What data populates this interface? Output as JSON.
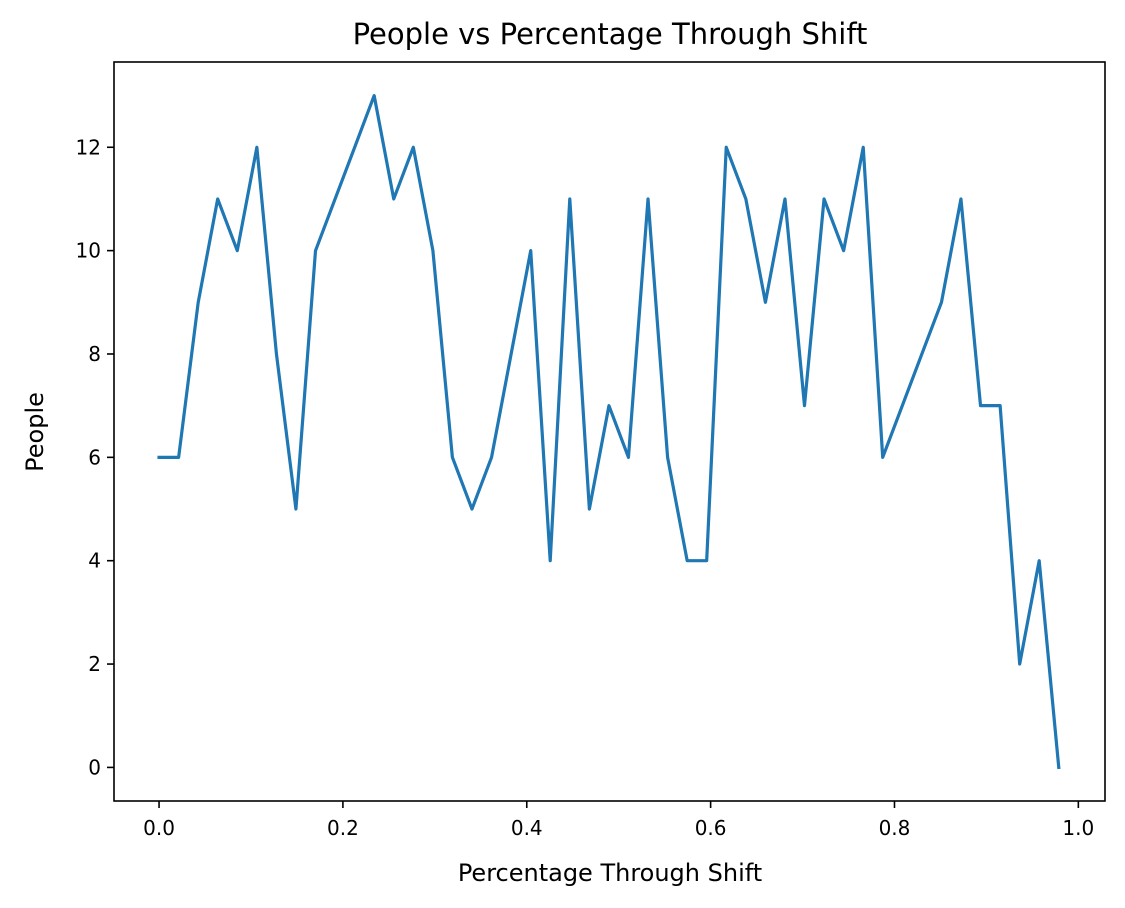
{
  "chart_data": {
    "type": "line",
    "title": "People vs Percentage Through Shift",
    "xlabel": "Percentage Through Shift",
    "ylabel": "People",
    "xlim": [
      -0.049,
      1.029
    ],
    "ylim": [
      -0.65,
      13.65
    ],
    "xticks": [
      0.0,
      0.2,
      0.4,
      0.6,
      0.8,
      1.0
    ],
    "xtick_labels": [
      "0.0",
      "0.2",
      "0.4",
      "0.6",
      "0.8",
      "1.0"
    ],
    "yticks": [
      0,
      2,
      4,
      6,
      8,
      10,
      12
    ],
    "ytick_labels": [
      "0",
      "2",
      "4",
      "6",
      "8",
      "10",
      "12"
    ],
    "grid": false,
    "color": "#1f77b4",
    "series": [
      {
        "x": [
          0.0,
          0.0213,
          0.0426,
          0.0638,
          0.0851,
          0.1064,
          0.1277,
          0.1489,
          0.1702,
          0.1915,
          0.2128,
          0.234,
          0.2553,
          0.2766,
          0.2979,
          0.3191,
          0.3404,
          0.3617,
          0.383,
          0.4043,
          0.4255,
          0.4468,
          0.4681,
          0.4894,
          0.5106,
          0.5319,
          0.5532,
          0.5745,
          0.5957,
          0.617,
          0.6383,
          0.6596,
          0.6809,
          0.7021,
          0.7234,
          0.7447,
          0.766,
          0.7872,
          0.8085,
          0.8298,
          0.8511,
          0.8723,
          0.8936,
          0.9149,
          0.9362,
          0.9574,
          0.9787
        ],
        "values": [
          6,
          6,
          9,
          11,
          10,
          12,
          8,
          5,
          10,
          11,
          12,
          13,
          11,
          12,
          10,
          6,
          5,
          6,
          8,
          10,
          4,
          11,
          5,
          7,
          6,
          11,
          6,
          4,
          4,
          12,
          11,
          9,
          11,
          7,
          11,
          10,
          12,
          6,
          7,
          8,
          9,
          11,
          7,
          7,
          2,
          4,
          0
        ]
      }
    ]
  }
}
